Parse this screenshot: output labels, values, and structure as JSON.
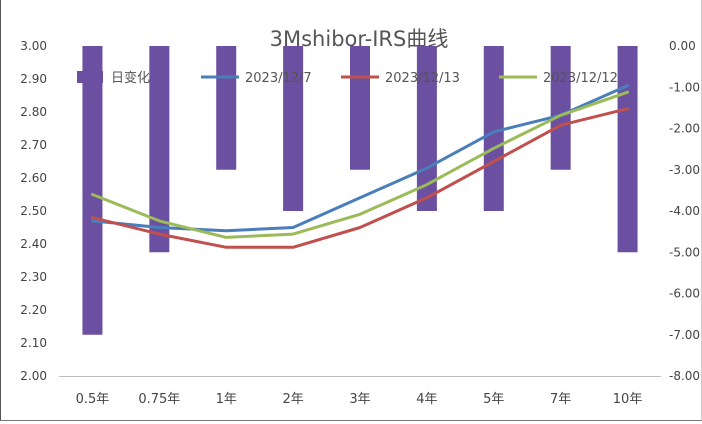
{
  "chart_data": {
    "type": "bar+line",
    "title": "3Mshibor-IRS曲线",
    "categories": [
      "0.5年",
      "0.75年",
      "1年",
      "2年",
      "3年",
      "4年",
      "5年",
      "7年",
      "10年"
    ],
    "y_left": {
      "min": 2.0,
      "max": 3.0,
      "step": 0.1,
      "tick_labels": [
        "2.00",
        "2.10",
        "2.20",
        "2.30",
        "2.40",
        "2.50",
        "2.60",
        "2.70",
        "2.80",
        "2.90",
        "3.00"
      ]
    },
    "y_right": {
      "min": -8.0,
      "max": 0.0,
      "step": 1.0,
      "tick_labels": [
        "-8.00",
        "-7.00",
        "-6.00",
        "-5.00",
        "-4.00",
        "-3.00",
        "-2.00",
        "-1.00",
        "0.00"
      ]
    },
    "bar_series": {
      "name": "日变化",
      "axis": "right",
      "color": "#6B4FA0",
      "values": [
        -7,
        -5,
        -3,
        -4,
        -3,
        -4,
        -4,
        -3,
        -5
      ]
    },
    "series": [
      {
        "name": "2023/12/7",
        "axis": "left",
        "color": "#4A7EBB",
        "values": [
          2.47,
          2.45,
          2.44,
          2.45,
          2.54,
          2.63,
          2.74,
          2.79,
          2.88
        ]
      },
      {
        "name": "2023/12/13",
        "axis": "left",
        "color": "#C0504D",
        "values": [
          2.48,
          2.43,
          2.39,
          2.39,
          2.45,
          2.54,
          2.65,
          2.76,
          2.81
        ]
      },
      {
        "name": "2023/12/12",
        "axis": "left",
        "color": "#9BBB59",
        "values": [
          2.55,
          2.47,
          2.42,
          2.43,
          2.49,
          2.58,
          2.69,
          2.79,
          2.86
        ]
      }
    ],
    "legend_position": "top",
    "grid": false
  }
}
